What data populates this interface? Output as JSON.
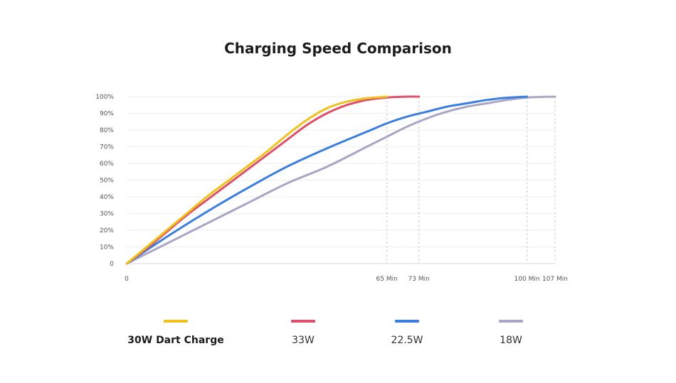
{
  "chart_data": {
    "type": "line",
    "title": "Charging Speed Comparison",
    "y_tick_labels": [
      "0",
      "10%",
      "20%",
      "30%",
      "40%",
      "50%",
      "60%",
      "70%",
      "80%",
      "90%",
      "100%"
    ],
    "x_tick_values": [
      0,
      65,
      73,
      100,
      107
    ],
    "x_tick_labels": [
      "0",
      "65 Min",
      "73 Min",
      "100 Min",
      "107 Min"
    ],
    "xlim": [
      0,
      107
    ],
    "ylim": [
      0,
      100
    ],
    "grid": true,
    "legend_placement": "bottom",
    "series": [
      {
        "name": "30W Dart Charge",
        "color": "#eec21b",
        "x": [
          0,
          6,
          10,
          15,
          20,
          25,
          30,
          35,
          40,
          45,
          50,
          55,
          60,
          65
        ],
        "y": [
          0,
          12,
          20,
          30,
          40,
          49,
          58,
          67,
          77,
          86,
          93,
          97,
          99,
          100
        ]
      },
      {
        "name": "33W",
        "color": "#df4f6a",
        "x": [
          0,
          6,
          10,
          15,
          20,
          25,
          30,
          35,
          40,
          45,
          50,
          55,
          60,
          65,
          70,
          73
        ],
        "y": [
          0,
          11,
          19,
          29,
          38,
          47,
          56,
          65,
          74,
          83,
          90,
          95,
          98,
          99.5,
          100,
          100
        ]
      },
      {
        "name": "22.5W",
        "color": "#3a7fe0",
        "x": [
          0,
          10,
          20,
          30,
          40,
          50,
          60,
          65,
          70,
          75,
          80,
          85,
          90,
          95,
          100
        ],
        "y": [
          0,
          16,
          31,
          45,
          58,
          69,
          79,
          84,
          88,
          91,
          94,
          96,
          98,
          99.3,
          100
        ]
      },
      {
        "name": "18W",
        "color": "#a8a6c4",
        "x": [
          0,
          10,
          20,
          30,
          40,
          50,
          60,
          65,
          70,
          75,
          80,
          85,
          90,
          95,
          100,
          107
        ],
        "y": [
          0,
          12,
          24,
          36,
          48,
          58,
          70,
          76,
          82,
          87,
          91,
          94,
          96,
          98,
          99.5,
          100
        ]
      }
    ]
  }
}
